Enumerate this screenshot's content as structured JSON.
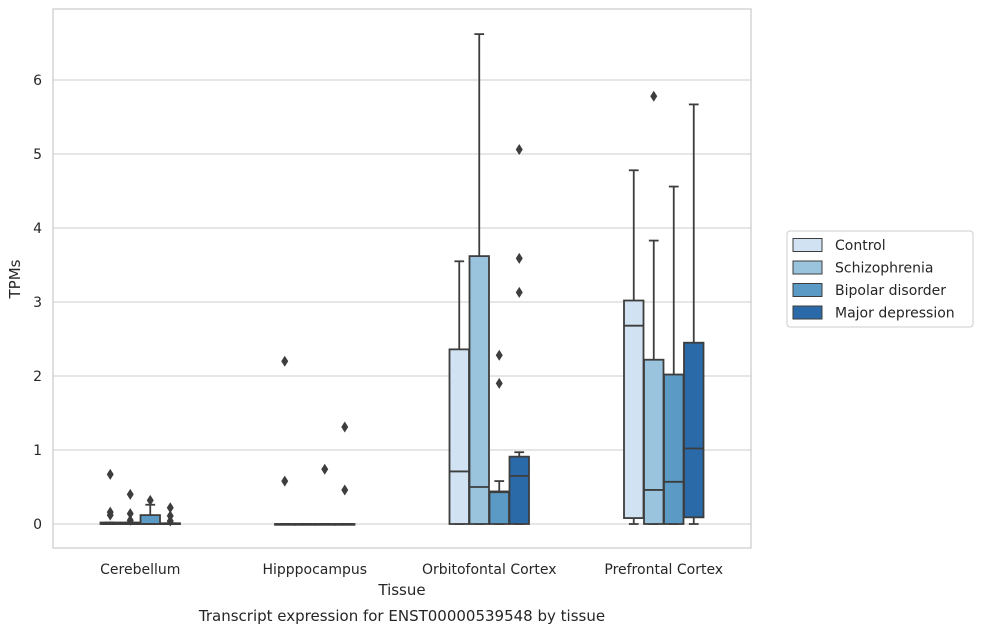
{
  "chart_data": {
    "type": "box",
    "xlabel": "Tissue",
    "ylabel": "TPMs",
    "caption": "Transcript expression for ENST00000539548 by tissue",
    "ylim": [
      -0.32,
      7.0
    ],
    "yticks": [
      "0",
      "1",
      "2",
      "3",
      "4",
      "5",
      "6"
    ],
    "grid": "horizontal",
    "legend_position": "right",
    "categories": [
      "Cerebellum",
      "Hipppocampus",
      "Orbitofontal Cortex",
      "Prefrontal Cortex"
    ],
    "series": [
      {
        "name": "Control",
        "color": "#d1e2f2",
        "boxes": [
          {
            "q1": 0,
            "median": 0,
            "q3": 0.02,
            "whislo": 0,
            "whishi": 0.02,
            "fliers": [
              0.12,
              0.16,
              0.67
            ]
          },
          {
            "q1": 0,
            "median": 0,
            "q3": 0,
            "whislo": 0,
            "whishi": 0,
            "fliers": [
              0.58,
              2.2
            ]
          },
          {
            "q1": 0,
            "median": 0.71,
            "q3": 2.36,
            "whislo": 0,
            "whishi": 3.55,
            "fliers": []
          },
          {
            "q1": 0.08,
            "median": 2.68,
            "q3": 3.02,
            "whislo": 0,
            "whishi": 4.78,
            "fliers": []
          }
        ]
      },
      {
        "name": "Schizophrenia",
        "color": "#9ac3dd",
        "boxes": [
          {
            "q1": 0,
            "median": 0,
            "q3": 0.02,
            "whislo": 0,
            "whishi": 0.02,
            "fliers": [
              0.05,
              0.14,
              0.4
            ]
          },
          {
            "q1": 0,
            "median": 0,
            "q3": 0,
            "whislo": 0,
            "whishi": 0,
            "fliers": []
          },
          {
            "q1": 0,
            "median": 0.5,
            "q3": 3.62,
            "whislo": 0,
            "whishi": 6.62,
            "fliers": []
          },
          {
            "q1": 0,
            "median": 0.46,
            "q3": 2.22,
            "whislo": 0,
            "whishi": 3.83,
            "fliers": [
              5.78
            ]
          }
        ]
      },
      {
        "name": "Bipolar disorder",
        "color": "#5b9ac4",
        "boxes": [
          {
            "q1": 0,
            "median": 0,
            "q3": 0.12,
            "whislo": 0,
            "whishi": 0.26,
            "fliers": [
              0.32
            ]
          },
          {
            "q1": 0,
            "median": 0,
            "q3": 0,
            "whislo": 0,
            "whishi": 0,
            "fliers": [
              0.74
            ]
          },
          {
            "q1": 0,
            "median": 0.43,
            "q3": 0.44,
            "whislo": 0,
            "whishi": 0.58,
            "fliers": [
              1.9,
              2.28
            ]
          },
          {
            "q1": 0,
            "median": 0.57,
            "q3": 2.02,
            "whislo": 0,
            "whishi": 4.56,
            "fliers": []
          }
        ]
      },
      {
        "name": "Major depression",
        "color": "#2a6aa8",
        "boxes": [
          {
            "q1": 0,
            "median": 0,
            "q3": 0.01,
            "whislo": 0,
            "whishi": 0.01,
            "fliers": [
              0.04,
              0.11,
              0.22
            ]
          },
          {
            "q1": 0,
            "median": 0,
            "q3": 0,
            "whislo": 0,
            "whishi": 0,
            "fliers": [
              0.46,
              1.31
            ]
          },
          {
            "q1": 0,
            "median": 0.65,
            "q3": 0.91,
            "whislo": 0,
            "whishi": 0.97,
            "fliers": [
              3.13,
              3.59,
              5.06
            ]
          },
          {
            "q1": 0.09,
            "median": 1.02,
            "q3": 2.45,
            "whislo": 0,
            "whishi": 5.67,
            "fliers": []
          }
        ]
      }
    ]
  }
}
